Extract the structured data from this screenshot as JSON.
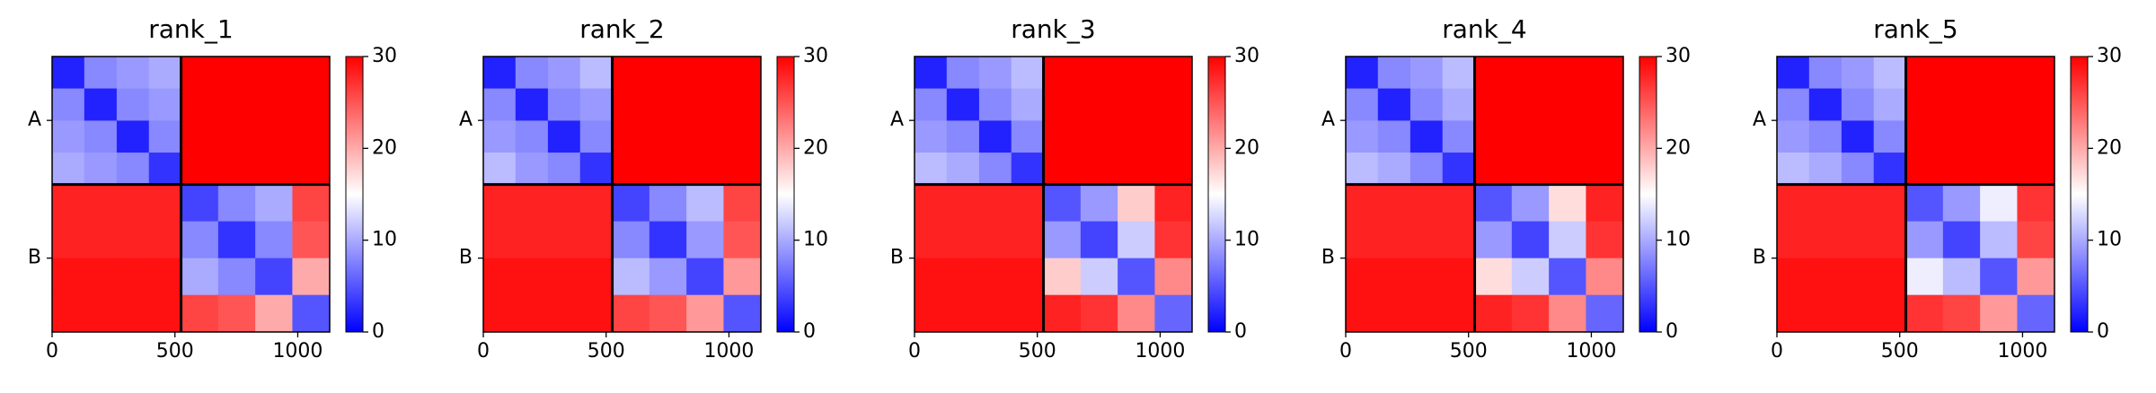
{
  "chart_data": [
    {
      "type": "heatmap",
      "title": "rank_1",
      "colormap": "bwr",
      "x_edges": [
        0,
        131,
        263,
        394,
        525,
        676,
        827,
        978,
        1130
      ],
      "values": [
        [
          2,
          8,
          9,
          10,
          30,
          30,
          30,
          30
        ],
        [
          8,
          2,
          8,
          9,
          30,
          30,
          30,
          30
        ],
        [
          9,
          8,
          2,
          8,
          30,
          30,
          30,
          30
        ],
        [
          10,
          9,
          8,
          3,
          30,
          30,
          30,
          30
        ],
        [
          28,
          28,
          28,
          28,
          4,
          8,
          10,
          26
        ],
        [
          28,
          28,
          28,
          28,
          8,
          3,
          8,
          25
        ],
        [
          29,
          29,
          29,
          29,
          10,
          8,
          4,
          20
        ],
        [
          29,
          29,
          29,
          29,
          26,
          25,
          20,
          5
        ]
      ],
      "xlim": [
        0,
        1130
      ],
      "xticks": [
        0,
        500,
        1000
      ],
      "ylim": [
        1130,
        0
      ],
      "yticks": [
        {
          "value": 262,
          "label": "A"
        },
        {
          "value": 827,
          "label": "B"
        }
      ],
      "chain_breaks": [
        525
      ],
      "clim": [
        0,
        30
      ],
      "cticks": [
        0,
        10,
        20,
        30
      ]
    },
    {
      "type": "heatmap",
      "title": "rank_2",
      "colormap": "bwr",
      "x_edges": [
        0,
        131,
        263,
        394,
        525,
        676,
        827,
        978,
        1130
      ],
      "values": [
        [
          2,
          8,
          9,
          11,
          30,
          30,
          30,
          30
        ],
        [
          8,
          2,
          8,
          9,
          30,
          30,
          30,
          30
        ],
        [
          9,
          8,
          2,
          8,
          30,
          30,
          30,
          30
        ],
        [
          11,
          9,
          8,
          3,
          30,
          30,
          30,
          30
        ],
        [
          28,
          28,
          28,
          28,
          4,
          8,
          11,
          26
        ],
        [
          28,
          28,
          28,
          28,
          8,
          3,
          9,
          25
        ],
        [
          29,
          29,
          29,
          29,
          11,
          9,
          4,
          21
        ],
        [
          29,
          29,
          29,
          29,
          26,
          25,
          21,
          5
        ]
      ],
      "xlim": [
        0,
        1130
      ],
      "xticks": [
        0,
        500,
        1000
      ],
      "ylim": [
        1130,
        0
      ],
      "yticks": [
        {
          "value": 262,
          "label": "A"
        },
        {
          "value": 827,
          "label": "B"
        }
      ],
      "chain_breaks": [
        525
      ],
      "clim": [
        0,
        30
      ],
      "cticks": [
        0,
        10,
        20,
        30
      ]
    },
    {
      "type": "heatmap",
      "title": "rank_3",
      "colormap": "bwr",
      "x_edges": [
        0,
        131,
        263,
        394,
        525,
        676,
        827,
        978,
        1130
      ],
      "values": [
        [
          2,
          8,
          9,
          11,
          30,
          30,
          30,
          30
        ],
        [
          8,
          2,
          8,
          10,
          30,
          30,
          30,
          30
        ],
        [
          9,
          8,
          2,
          8,
          30,
          30,
          30,
          30
        ],
        [
          11,
          10,
          8,
          3,
          30,
          30,
          30,
          30
        ],
        [
          28,
          28,
          28,
          28,
          5,
          9,
          18,
          28
        ],
        [
          28,
          28,
          28,
          28,
          9,
          4,
          12,
          27
        ],
        [
          29,
          29,
          29,
          29,
          18,
          12,
          5,
          22
        ],
        [
          29,
          29,
          29,
          29,
          28,
          27,
          22,
          6
        ]
      ],
      "xlim": [
        0,
        1130
      ],
      "xticks": [
        0,
        500,
        1000
      ],
      "ylim": [
        1130,
        0
      ],
      "yticks": [
        {
          "value": 262,
          "label": "A"
        },
        {
          "value": 827,
          "label": "B"
        }
      ],
      "chain_breaks": [
        525
      ],
      "clim": [
        0,
        30
      ],
      "cticks": [
        0,
        10,
        20,
        30
      ]
    },
    {
      "type": "heatmap",
      "title": "rank_4",
      "colormap": "bwr",
      "x_edges": [
        0,
        131,
        263,
        394,
        525,
        676,
        827,
        978,
        1130
      ],
      "values": [
        [
          2,
          8,
          9,
          11,
          30,
          30,
          30,
          30
        ],
        [
          8,
          2,
          8,
          10,
          30,
          30,
          30,
          30
        ],
        [
          9,
          8,
          2,
          8,
          30,
          30,
          30,
          30
        ],
        [
          11,
          10,
          8,
          3,
          30,
          30,
          30,
          30
        ],
        [
          28,
          28,
          28,
          28,
          5,
          9,
          17,
          28
        ],
        [
          28,
          28,
          28,
          28,
          9,
          4,
          12,
          27
        ],
        [
          29,
          29,
          29,
          29,
          17,
          12,
          5,
          22
        ],
        [
          29,
          29,
          29,
          29,
          28,
          27,
          22,
          6
        ]
      ],
      "xlim": [
        0,
        1130
      ],
      "xticks": [
        0,
        500,
        1000
      ],
      "ylim": [
        1130,
        0
      ],
      "yticks": [
        {
          "value": 262,
          "label": "A"
        },
        {
          "value": 827,
          "label": "B"
        }
      ],
      "chain_breaks": [
        525
      ],
      "clim": [
        0,
        30
      ],
      "cticks": [
        0,
        10,
        20,
        30
      ]
    },
    {
      "type": "heatmap",
      "title": "rank_5",
      "colormap": "bwr",
      "x_edges": [
        0,
        131,
        263,
        394,
        525,
        676,
        827,
        978,
        1130
      ],
      "values": [
        [
          2,
          8,
          9,
          11,
          30,
          30,
          30,
          30
        ],
        [
          8,
          2,
          8,
          10,
          30,
          30,
          30,
          30
        ],
        [
          9,
          8,
          2,
          8,
          30,
          30,
          30,
          30
        ],
        [
          11,
          10,
          8,
          3,
          30,
          30,
          30,
          30
        ],
        [
          28,
          28,
          28,
          28,
          5,
          9,
          14,
          27
        ],
        [
          28,
          28,
          28,
          28,
          9,
          4,
          11,
          26
        ],
        [
          29,
          29,
          29,
          29,
          14,
          11,
          5,
          21
        ],
        [
          29,
          29,
          29,
          29,
          27,
          26,
          21,
          6
        ]
      ],
      "xlim": [
        0,
        1130
      ],
      "xticks": [
        0,
        500,
        1000
      ],
      "ylim": [
        1130,
        0
      ],
      "yticks": [
        {
          "value": 262,
          "label": "A"
        },
        {
          "value": 827,
          "label": "B"
        }
      ],
      "chain_breaks": [
        525
      ],
      "clim": [
        0,
        30
      ],
      "cticks": [
        0,
        10,
        20,
        30
      ]
    }
  ]
}
